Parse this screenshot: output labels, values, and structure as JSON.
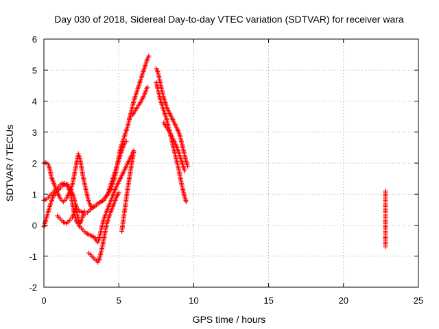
{
  "chart_data": {
    "type": "scatter",
    "title": "Day 030 of 2018, Sidereal Day-to-day VTEC variation (SDTVAR) for receiver wara",
    "xlabel": "GPS time / hours",
    "ylabel": "SDTVAR / TECUs",
    "xlim": [
      0,
      25
    ],
    "ylim": [
      -2,
      6
    ],
    "xticks": [
      "0",
      "5",
      "10",
      "15",
      "20",
      "25"
    ],
    "yticks": [
      "-2",
      "-1",
      "0",
      "1",
      "2",
      "3",
      "4",
      "5",
      "6"
    ],
    "grid": true,
    "marker": "plus",
    "color": "#ff0000",
    "series": [
      {
        "x": [
          0.0,
          0.15,
          0.3,
          0.45,
          0.6,
          0.8,
          1.0,
          1.2,
          1.4,
          1.6,
          1.8,
          2.0,
          2.1,
          2.2,
          2.4,
          2.6,
          2.75,
          2.9,
          3.0,
          3.1,
          3.2,
          3.3,
          3.4,
          3.6,
          3.8,
          4.0,
          4.2,
          4.4,
          4.5,
          4.6,
          4.7,
          4.8,
          4.9,
          5.0,
          5.1,
          5.2,
          5.3,
          5.4,
          5.5,
          5.6,
          5.7,
          5.8,
          5.9,
          6.0,
          6.1,
          6.2,
          6.3,
          6.4,
          6.5,
          6.6,
          6.7,
          6.8,
          6.9,
          7.0
        ],
        "y": [
          -0.05,
          0.2,
          0.45,
          0.7,
          0.9,
          1.05,
          1.15,
          1.25,
          1.35,
          1.3,
          1.15,
          0.9,
          0.7,
          0.55,
          0.45,
          0.4,
          0.35,
          0.4,
          0.45,
          0.5,
          0.55,
          0.6,
          0.6,
          0.7,
          0.75,
          0.85,
          0.95,
          1.1,
          1.2,
          1.35,
          1.5,
          1.7,
          1.95,
          2.2,
          2.45,
          2.6,
          2.75,
          2.9,
          3.05,
          3.2,
          3.4,
          3.6,
          3.8,
          4.0,
          4.15,
          4.3,
          4.45,
          4.6,
          4.75,
          4.9,
          5.05,
          5.2,
          5.35,
          5.45
        ]
      },
      {
        "x": [
          0.0,
          0.1,
          0.2,
          0.3,
          0.4,
          0.5,
          0.7,
          0.9,
          1.1,
          1.3,
          1.5,
          1.7,
          1.9,
          2.0,
          2.1,
          2.2,
          2.3,
          2.4,
          2.5,
          2.6,
          2.8,
          3.0,
          3.2,
          3.4,
          3.6,
          3.8,
          4.0,
          4.2,
          4.3,
          4.4,
          4.5,
          4.6,
          4.7,
          4.8,
          4.9,
          5.0,
          5.1,
          5.2,
          5.3,
          5.4,
          5.5
        ],
        "y": [
          2.0,
          2.02,
          2.0,
          1.95,
          1.8,
          1.55,
          1.3,
          1.05,
          0.85,
          0.75,
          0.85,
          1.05,
          1.3,
          1.55,
          1.8,
          2.05,
          2.3,
          2.15,
          1.9,
          1.6,
          1.15,
          0.75,
          0.55,
          0.6,
          0.7,
          0.75,
          0.8,
          0.95,
          1.05,
          1.2,
          1.35,
          1.5,
          1.65,
          1.8,
          1.95,
          2.1,
          2.25,
          2.4,
          2.55,
          2.65,
          2.7
        ]
      },
      {
        "x": [
          0.0,
          0.2,
          0.4,
          0.6,
          0.8,
          1.0,
          1.2,
          1.4,
          1.6,
          1.8,
          1.9,
          2.0,
          2.1,
          2.2,
          2.4,
          2.6,
          2.8,
          3.0,
          3.2,
          3.4,
          3.5,
          3.6,
          3.7,
          3.8,
          3.9,
          4.0,
          4.2,
          4.4,
          4.6,
          4.8,
          5.0,
          5.2,
          5.4,
          5.6,
          5.8,
          6.0
        ],
        "y": [
          0.8,
          0.85,
          0.95,
          1.05,
          1.15,
          1.25,
          1.35,
          1.3,
          1.25,
          1.0,
          0.7,
          0.45,
          0.25,
          0.1,
          -0.05,
          -0.15,
          -0.25,
          -0.3,
          -0.35,
          -0.4,
          -0.5,
          -0.55,
          -0.4,
          -0.2,
          0.0,
          0.2,
          0.45,
          0.7,
          0.95,
          1.2,
          1.4,
          1.6,
          1.8,
          2.0,
          2.2,
          2.4
        ]
      },
      {
        "x": [
          0.9,
          1.1,
          1.3,
          1.5,
          1.7,
          1.9,
          2.0,
          2.1,
          2.2,
          2.3,
          2.4,
          2.5,
          2.6,
          2.7
        ],
        "y": [
          0.3,
          0.2,
          0.1,
          0.05,
          0.15,
          0.25,
          0.4,
          0.55,
          0.4,
          0.2,
          0.05,
          0.15,
          0.3,
          0.45
        ]
      },
      {
        "x": [
          3.0,
          3.1,
          3.2,
          3.3,
          3.4,
          3.5,
          3.6,
          3.7,
          3.8,
          3.9,
          4.0,
          4.1,
          4.2,
          4.4,
          4.6,
          4.8,
          5.0
        ],
        "y": [
          -0.9,
          -0.95,
          -1.0,
          -1.05,
          -1.1,
          -1.15,
          -1.2,
          -1.1,
          -0.9,
          -0.7,
          -0.45,
          -0.2,
          0.05,
          0.35,
          0.6,
          0.85,
          1.05
        ]
      },
      {
        "x": [
          5.2,
          5.3,
          5.4,
          5.5,
          5.6,
          5.7,
          5.8,
          5.9,
          6.0
        ],
        "y": [
          -0.2,
          0.15,
          0.5,
          0.85,
          1.2,
          1.5,
          1.8,
          2.1,
          2.35
        ]
      },
      {
        "x": [
          5.7,
          5.9,
          6.1,
          6.3,
          6.5,
          6.7,
          6.9
        ],
        "y": [
          3.45,
          3.55,
          3.7,
          3.85,
          4.0,
          4.2,
          4.45
        ]
      },
      {
        "x": [
          7.5,
          7.6,
          7.7,
          7.8,
          7.9,
          8.0,
          8.1,
          8.2,
          8.3,
          8.4,
          8.5,
          8.6,
          8.7,
          8.8,
          8.9,
          9.0,
          9.1,
          9.2,
          9.3,
          9.4,
          9.5,
          9.6
        ],
        "y": [
          5.05,
          4.95,
          4.75,
          4.5,
          4.3,
          4.1,
          3.95,
          3.8,
          3.7,
          3.6,
          3.5,
          3.4,
          3.3,
          3.2,
          3.1,
          3.0,
          2.85,
          2.65,
          2.45,
          2.25,
          2.05,
          1.9
        ]
      },
      {
        "x": [
          7.5,
          7.6,
          7.7,
          7.8,
          7.9,
          8.0,
          8.1,
          8.2,
          8.3,
          8.4,
          8.5,
          8.6,
          8.7,
          8.8,
          8.9,
          9.0,
          9.1,
          9.2,
          9.3,
          9.4,
          9.5
        ],
        "y": [
          4.6,
          4.4,
          4.2,
          4.0,
          3.85,
          3.7,
          3.55,
          3.4,
          3.2,
          3.0,
          2.8,
          2.6,
          2.4,
          2.2,
          2.0,
          1.8,
          1.55,
          1.3,
          1.1,
          0.9,
          0.75
        ]
      },
      {
        "x": [
          8.0,
          8.2,
          8.4,
          8.6,
          8.8,
          9.0,
          9.2,
          9.4
        ],
        "y": [
          3.3,
          3.15,
          3.0,
          2.8,
          2.6,
          2.35,
          2.05,
          1.75
        ]
      },
      {
        "x": [
          22.8,
          22.8,
          22.8,
          22.8,
          22.8,
          22.8,
          22.8,
          22.8,
          22.8
        ],
        "y": [
          1.1,
          1.05,
          0.6,
          0.55,
          0.35,
          -0.25,
          -0.3,
          -0.65,
          -0.7
        ]
      }
    ]
  }
}
